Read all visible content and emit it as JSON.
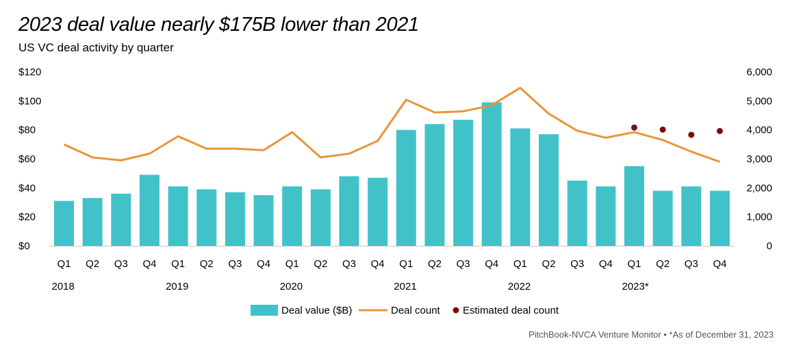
{
  "title": "2023 deal value nearly $175B lower than 2021",
  "subtitle": "US VC deal activity by quarter",
  "source": "PitchBook-NVCA Venture Monitor  •  *As of December 31, 2023",
  "colors": {
    "bar": "#41c2c8",
    "line": "#e8953a",
    "estimate": "#7b0d12"
  },
  "chart_data": {
    "type": "bar",
    "categories": [
      "Q1",
      "Q2",
      "Q3",
      "Q4",
      "Q1",
      "Q2",
      "Q3",
      "Q4",
      "Q1",
      "Q2",
      "Q3",
      "Q4",
      "Q1",
      "Q2",
      "Q3",
      "Q4",
      "Q1",
      "Q2",
      "Q3",
      "Q4",
      "Q1",
      "Q2",
      "Q3",
      "Q4"
    ],
    "year_labels": [
      {
        "label": "2018",
        "index": 0
      },
      {
        "label": "2019",
        "index": 4
      },
      {
        "label": "2020",
        "index": 8
      },
      {
        "label": "2021",
        "index": 12
      },
      {
        "label": "2022",
        "index": 16
      },
      {
        "label": "2023*",
        "index": 20
      }
    ],
    "series": [
      {
        "name": "Deal value ($B)",
        "type": "bar",
        "axis": "left",
        "values": [
          31,
          33,
          36,
          49,
          41,
          39,
          37,
          35,
          41,
          39,
          48,
          47,
          80,
          84,
          87,
          99,
          81,
          77,
          45,
          41,
          55,
          38,
          41,
          38
        ]
      },
      {
        "name": "Deal count",
        "type": "line",
        "axis": "right",
        "values": [
          3500,
          3050,
          2950,
          3180,
          3780,
          3350,
          3350,
          3300,
          3920,
          3050,
          3180,
          3620,
          5040,
          4600,
          4640,
          4850,
          5450,
          4560,
          3970,
          3730,
          3920,
          3650,
          3250,
          2900
        ]
      },
      {
        "name": "Estimated deal count",
        "type": "scatter",
        "axis": "right",
        "values": [
          null,
          null,
          null,
          null,
          null,
          null,
          null,
          null,
          null,
          null,
          null,
          null,
          null,
          null,
          null,
          null,
          null,
          null,
          null,
          null,
          4080,
          4010,
          3830,
          3960
        ]
      }
    ],
    "y_left": {
      "ylim": [
        0,
        120
      ],
      "ticks": [
        "$0",
        "$20",
        "$40",
        "$60",
        "$80",
        "$100",
        "$120"
      ]
    },
    "y_right": {
      "ylim": [
        0,
        6000
      ],
      "ticks": [
        "0",
        "1,000",
        "2,000",
        "3,000",
        "4,000",
        "5,000",
        "6,000"
      ]
    },
    "grid": false,
    "legend": "bottom"
  }
}
